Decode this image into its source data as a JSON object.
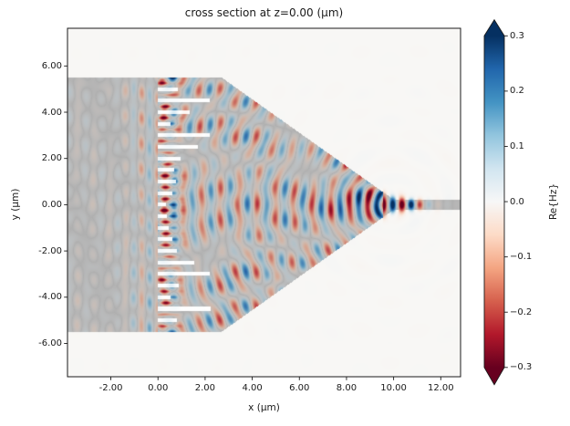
{
  "title": "cross section at z=0.00 (μm)",
  "axes": {
    "xlabel": "x (μm)",
    "ylabel": "y (μm)",
    "xlim": [
      -3.84,
      12.84
    ],
    "ylim": [
      -7.44,
      7.63
    ],
    "xticks": {
      "values": [
        -2,
        0,
        2,
        4,
        6,
        8,
        10,
        12
      ],
      "labels": [
        "-2.00",
        "0.00",
        "2.00",
        "4.00",
        "6.00",
        "8.00",
        "10.00",
        "12.00"
      ]
    },
    "yticks": {
      "values": [
        6,
        4,
        2,
        0,
        -2,
        -4,
        -6
      ],
      "labels": [
        "6.00",
        "4.00",
        "2.00",
        "0.00",
        "-2.00",
        "-4.00",
        "-6.00"
      ]
    }
  },
  "colorbar": {
    "label": "Re{Hz}",
    "vmin": -0.3,
    "vmax": 0.3,
    "extend": "both",
    "cmap": "RdBu",
    "tick_values": [
      0.3,
      0.2,
      0.1,
      0.0,
      -0.1,
      -0.2,
      -0.3
    ],
    "tick_labels": [
      "0.3",
      "0.2",
      "0.1",
      "0.0",
      "−0.1",
      "−0.2",
      "−0.3"
    ],
    "cmap_anchors": [
      "#67001f",
      "#b2182b",
      "#d6604d",
      "#f4a582",
      "#fddbc7",
      "#f7f7f7",
      "#d1e5f0",
      "#92c5de",
      "#4393c3",
      "#2166ac",
      "#053061"
    ]
  },
  "chart_data": {
    "type": "heatmap",
    "title": "cross section at z=0.00 (μm)",
    "xlabel": "x (μm)",
    "ylabel": "y (μm)",
    "field": "Re{Hz}",
    "cmap": "RdBu",
    "vmin": -0.3,
    "vmax": 0.3,
    "xlim": [
      -3.84,
      12.84
    ],
    "ylim": [
      -7.44,
      7.63
    ],
    "background_color": "#f8f7f5",
    "structure": {
      "color": "#afafaf",
      "slab": {
        "x_range": [
          -3.84,
          2.7
        ],
        "y_range": [
          -5.5,
          5.5
        ]
      },
      "taper": {
        "x_range": [
          2.7,
          10.0
        ],
        "half_width_start": 5.5,
        "half_width_end": 0.22
      },
      "waveguide": {
        "x_range": [
          10.0,
          12.84
        ],
        "half_width": 0.22
      },
      "slots": {
        "color": "#ffffff",
        "x_start": 0.0,
        "thickness": 0.16,
        "spacing": 0.5,
        "rows": [
          {
            "y": 5.0,
            "len": 0.85
          },
          {
            "y": 4.5,
            "len": 2.2
          },
          {
            "y": 4.0,
            "len": 1.35
          },
          {
            "y": 3.5,
            "len": 0.55
          },
          {
            "y": 3.0,
            "len": 2.2
          },
          {
            "y": 2.5,
            "len": 1.7
          },
          {
            "y": 2.0,
            "len": 0.95
          },
          {
            "y": 1.5,
            "len": 0.7
          },
          {
            "y": 1.0,
            "len": 0.75
          },
          {
            "y": 0.5,
            "len": 0.6
          },
          {
            "y": 0.0,
            "len": 0.35
          },
          {
            "y": -0.5,
            "len": 0.38
          },
          {
            "y": -1.0,
            "len": 0.45
          },
          {
            "y": -1.5,
            "len": 0.6
          },
          {
            "y": -2.0,
            "len": 0.8
          },
          {
            "y": -2.5,
            "len": 1.55
          },
          {
            "y": -3.0,
            "len": 2.2
          },
          {
            "y": -3.5,
            "len": 0.9
          },
          {
            "y": -4.0,
            "len": 0.55
          },
          {
            "y": -4.5,
            "len": 2.25
          },
          {
            "y": -5.0,
            "len": 0.8
          }
        ]
      }
    },
    "wave": {
      "wavelength_structure": 0.78,
      "wavelength_slab": 0.68,
      "wavelength_background": 1.25,
      "focus": [
        10.0,
        0.0
      ],
      "peak_amplitude": 0.34
    }
  }
}
